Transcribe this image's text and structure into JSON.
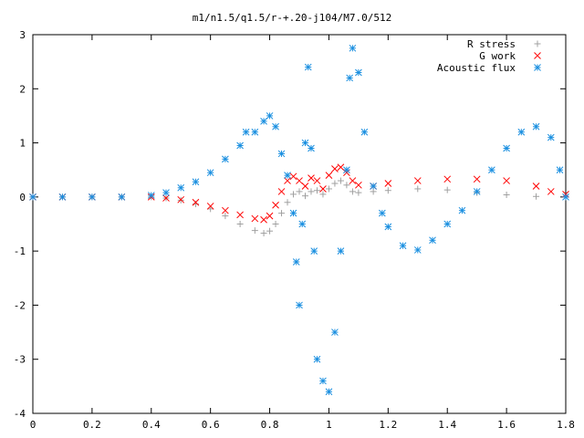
{
  "chart_data": {
    "type": "scatter",
    "title": "m1/n1.5/q1.5/r-+.20-j104/M7.0/512",
    "xlabel": "",
    "ylabel": "",
    "xlim": [
      0,
      1.8
    ],
    "ylim": [
      -4,
      3
    ],
    "xticks": [
      0,
      0.2,
      0.4,
      0.6,
      0.8,
      1,
      1.2,
      1.4,
      1.6,
      1.8
    ],
    "yticks": [
      3,
      2,
      1,
      0,
      -1,
      -2,
      -3,
      -4
    ],
    "xtick_labels": [
      "0",
      "0.2",
      "0.4",
      "0.6",
      "0.8",
      "1",
      "1.2",
      "1.4",
      "1.6",
      "1.8"
    ],
    "ytick_labels": [
      "3",
      "2",
      "1",
      "0",
      "-1",
      "-2",
      "-3",
      "-4"
    ],
    "grid": false,
    "legend_position": "top-right",
    "series": [
      {
        "name": "R stress",
        "marker": "plus",
        "color": "#a0a0a0",
        "points": [
          [
            0.0,
            0.0
          ],
          [
            0.1,
            0.0
          ],
          [
            0.2,
            0.0
          ],
          [
            0.3,
            0.0
          ],
          [
            0.4,
            0.0
          ],
          [
            0.45,
            -0.02
          ],
          [
            0.5,
            -0.06
          ],
          [
            0.55,
            -0.13
          ],
          [
            0.6,
            -0.22
          ],
          [
            0.65,
            -0.35
          ],
          [
            0.7,
            -0.5
          ],
          [
            0.75,
            -0.62
          ],
          [
            0.78,
            -0.67
          ],
          [
            0.8,
            -0.63
          ],
          [
            0.82,
            -0.5
          ],
          [
            0.84,
            -0.3
          ],
          [
            0.86,
            -0.1
          ],
          [
            0.88,
            0.05
          ],
          [
            0.9,
            0.1
          ],
          [
            0.92,
            0.02
          ],
          [
            0.94,
            0.1
          ],
          [
            0.96,
            0.12
          ],
          [
            0.98,
            0.05
          ],
          [
            1.0,
            0.15
          ],
          [
            1.02,
            0.25
          ],
          [
            1.04,
            0.3
          ],
          [
            1.06,
            0.22
          ],
          [
            1.08,
            0.1
          ],
          [
            1.1,
            0.08
          ],
          [
            1.15,
            0.1
          ],
          [
            1.2,
            0.12
          ],
          [
            1.3,
            0.15
          ],
          [
            1.4,
            0.13
          ],
          [
            1.5,
            0.08
          ],
          [
            1.6,
            0.04
          ],
          [
            1.7,
            0.01
          ],
          [
            1.8,
            0.0
          ]
        ]
      },
      {
        "name": "G work",
        "marker": "cross",
        "color": "#ff0000",
        "points": [
          [
            0.0,
            0.0
          ],
          [
            0.1,
            0.0
          ],
          [
            0.2,
            0.0
          ],
          [
            0.3,
            0.0
          ],
          [
            0.4,
            0.0
          ],
          [
            0.45,
            -0.02
          ],
          [
            0.5,
            -0.05
          ],
          [
            0.55,
            -0.1
          ],
          [
            0.6,
            -0.17
          ],
          [
            0.65,
            -0.25
          ],
          [
            0.7,
            -0.33
          ],
          [
            0.75,
            -0.4
          ],
          [
            0.78,
            -0.42
          ],
          [
            0.8,
            -0.35
          ],
          [
            0.82,
            -0.15
          ],
          [
            0.84,
            0.1
          ],
          [
            0.86,
            0.3
          ],
          [
            0.88,
            0.38
          ],
          [
            0.9,
            0.3
          ],
          [
            0.92,
            0.2
          ],
          [
            0.94,
            0.35
          ],
          [
            0.96,
            0.3
          ],
          [
            0.98,
            0.15
          ],
          [
            1.0,
            0.4
          ],
          [
            1.02,
            0.52
          ],
          [
            1.04,
            0.55
          ],
          [
            1.06,
            0.45
          ],
          [
            1.08,
            0.3
          ],
          [
            1.1,
            0.22
          ],
          [
            1.15,
            0.2
          ],
          [
            1.2,
            0.25
          ],
          [
            1.3,
            0.3
          ],
          [
            1.4,
            0.33
          ],
          [
            1.5,
            0.33
          ],
          [
            1.6,
            0.3
          ],
          [
            1.7,
            0.2
          ],
          [
            1.75,
            0.1
          ],
          [
            1.8,
            0.05
          ]
        ]
      },
      {
        "name": "Acoustic flux",
        "marker": "star",
        "color": "#1a8fe0",
        "points": [
          [
            0.0,
            0.0
          ],
          [
            0.1,
            0.0
          ],
          [
            0.2,
            0.0
          ],
          [
            0.3,
            0.0
          ],
          [
            0.4,
            0.03
          ],
          [
            0.45,
            0.08
          ],
          [
            0.5,
            0.17
          ],
          [
            0.55,
            0.28
          ],
          [
            0.6,
            0.45
          ],
          [
            0.65,
            0.7
          ],
          [
            0.7,
            0.95
          ],
          [
            0.72,
            1.2
          ],
          [
            0.75,
            1.2
          ],
          [
            0.78,
            1.4
          ],
          [
            0.8,
            1.5
          ],
          [
            0.82,
            1.3
          ],
          [
            0.84,
            0.8
          ],
          [
            0.86,
            0.4
          ],
          [
            0.88,
            -0.3
          ],
          [
            0.89,
            -1.2
          ],
          [
            0.9,
            -2.0
          ],
          [
            0.91,
            -0.5
          ],
          [
            0.92,
            1.0
          ],
          [
            0.93,
            2.4
          ],
          [
            0.94,
            0.9
          ],
          [
            0.95,
            -1.0
          ],
          [
            0.96,
            -3.0
          ],
          [
            0.98,
            -3.4
          ],
          [
            1.0,
            -3.6
          ],
          [
            1.02,
            -2.5
          ],
          [
            1.04,
            -1.0
          ],
          [
            1.06,
            0.5
          ],
          [
            1.07,
            2.2
          ],
          [
            1.08,
            2.75
          ],
          [
            1.1,
            2.3
          ],
          [
            1.12,
            1.2
          ],
          [
            1.15,
            0.2
          ],
          [
            1.18,
            -0.3
          ],
          [
            1.2,
            -0.55
          ],
          [
            1.25,
            -0.9
          ],
          [
            1.3,
            -0.98
          ],
          [
            1.35,
            -0.8
          ],
          [
            1.4,
            -0.5
          ],
          [
            1.45,
            -0.25
          ],
          [
            1.5,
            0.1
          ],
          [
            1.55,
            0.5
          ],
          [
            1.6,
            0.9
          ],
          [
            1.65,
            1.2
          ],
          [
            1.7,
            1.3
          ],
          [
            1.75,
            1.1
          ],
          [
            1.78,
            0.5
          ],
          [
            1.8,
            0.0
          ]
        ]
      }
    ]
  }
}
